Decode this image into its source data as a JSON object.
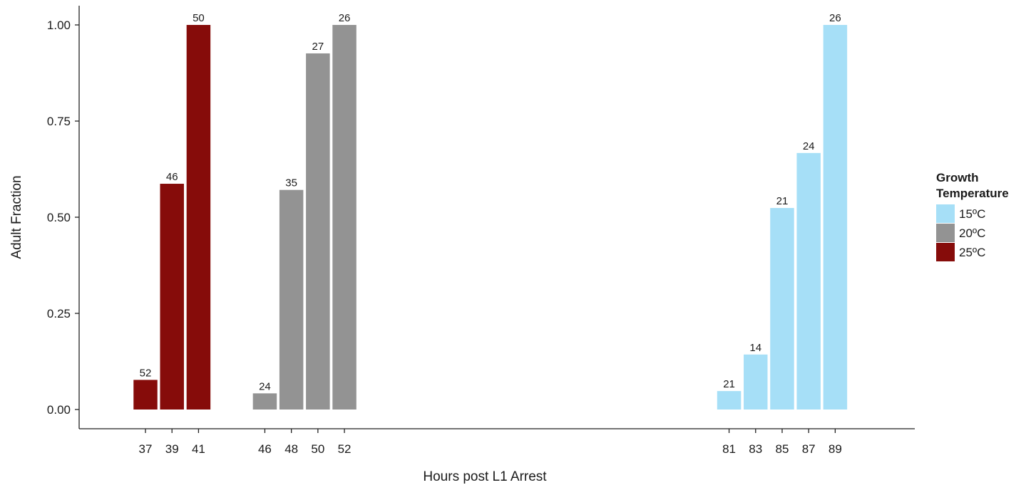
{
  "chart_data": {
    "type": "bar",
    "xlabel": "Hours post L1 Arrest",
    "ylabel": "Adult Fraction",
    "xlim": [
      32,
      95
    ],
    "ylim": [
      -0.05,
      1.05
    ],
    "yticks": [
      0.0,
      0.25,
      0.5,
      0.75,
      1.0
    ],
    "ytick_labels": [
      "0.00",
      "0.25",
      "0.50",
      "0.75",
      "1.00"
    ],
    "grid": false,
    "legend": {
      "title": "Growth Temperature",
      "title_lines": [
        "Growth",
        "Temperature"
      ],
      "position": "right"
    },
    "series": [
      {
        "name": "15ºC",
        "color": "#a6dff7",
        "x": [
          81,
          83,
          85,
          87,
          89
        ],
        "values": [
          0.048,
          0.143,
          0.524,
          0.667,
          1.0
        ],
        "labels": [
          "21",
          "14",
          "21",
          "24",
          "26"
        ]
      },
      {
        "name": "20ºC",
        "color": "#939393",
        "x": [
          46,
          48,
          50,
          52
        ],
        "values": [
          0.042,
          0.571,
          0.926,
          1.0
        ],
        "labels": [
          "24",
          "35",
          "27",
          "26"
        ]
      },
      {
        "name": "25ºC",
        "color": "#860c0a",
        "x": [
          37,
          39,
          41
        ],
        "values": [
          0.077,
          0.587,
          1.0
        ],
        "labels": [
          "52",
          "46",
          "50"
        ]
      }
    ]
  }
}
